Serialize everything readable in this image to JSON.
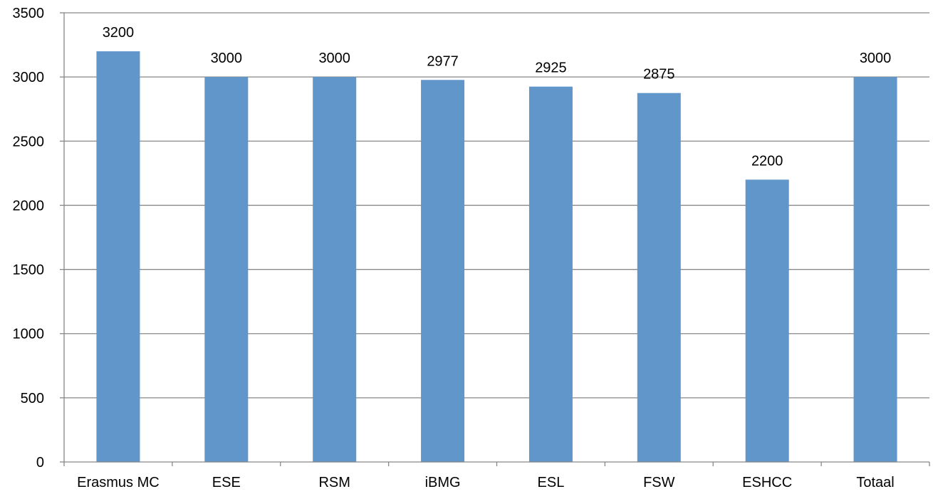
{
  "chart_data": {
    "type": "bar",
    "categories": [
      "Erasmus MC",
      "ESE",
      "RSM",
      "iBMG",
      "ESL",
      "FSW",
      "ESHCC",
      "Totaal"
    ],
    "values": [
      3200,
      3000,
      3000,
      2977,
      2925,
      2875,
      2200,
      3000
    ],
    "data_labels": [
      "3200",
      "3000",
      "3000",
      "2977",
      "2925",
      "2875",
      "2200",
      "3000"
    ],
    "yticks": [
      0,
      500,
      1000,
      1500,
      2000,
      2500,
      3000,
      3500
    ],
    "ylim": [
      0,
      3500
    ],
    "grid": true,
    "legend": "none",
    "colors": {
      "bar": "#6196CB",
      "grid": "#878787",
      "axis": "#878787",
      "text": "#000000"
    }
  }
}
